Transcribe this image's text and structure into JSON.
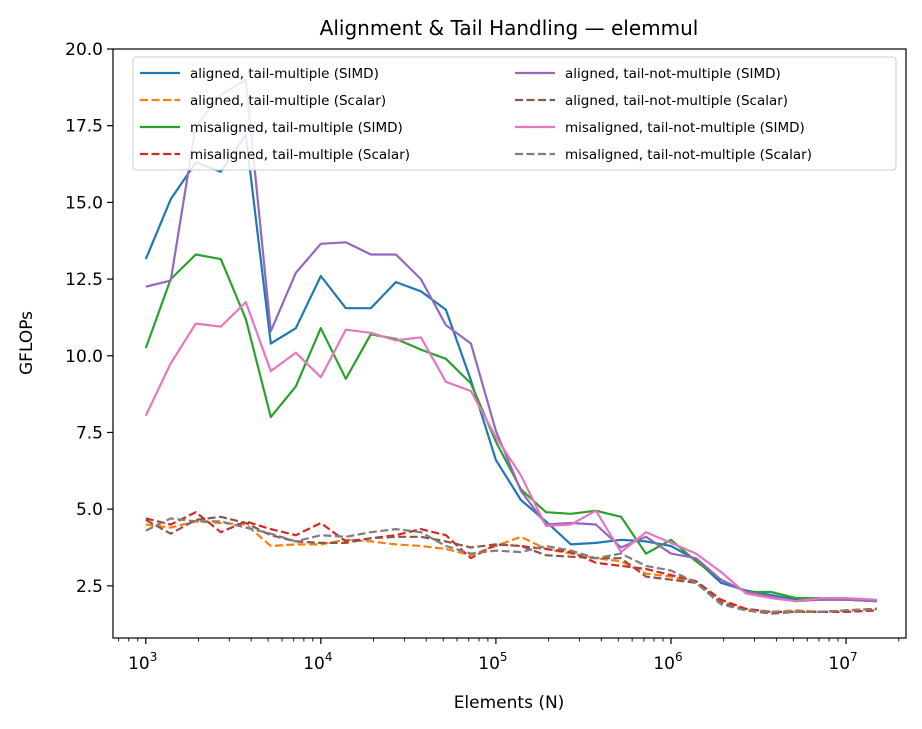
{
  "chart_data": {
    "type": "line",
    "title": "Alignment & Tail Handling — elemmul",
    "xlabel": "Elements (N)",
    "ylabel": "GFLOPs",
    "xscale": "log",
    "xlim": [
      650,
      22000000
    ],
    "ylim": [
      0.8,
      20.0
    ],
    "yticks": [
      2.5,
      5.0,
      7.5,
      10.0,
      12.5,
      15.0,
      17.5,
      20.0
    ],
    "ytick_labels": [
      "2.5",
      "5.0",
      "7.5",
      "10.0",
      "12.5",
      "15.0",
      "17.5",
      "20.0"
    ],
    "xticks": [
      {
        "value": 1000,
        "base": "10",
        "exp": "3"
      },
      {
        "value": 10000,
        "base": "10",
        "exp": "4"
      },
      {
        "value": 100000,
        "base": "10",
        "exp": "5"
      },
      {
        "value": 1000000,
        "base": "10",
        "exp": "6"
      },
      {
        "value": 10000000,
        "base": "10",
        "exp": "7"
      }
    ],
    "grid": false,
    "legend_placement": "top-left",
    "x": [
      1000,
      1389,
      1931,
      2683,
      3728,
      5179,
      7197,
      10000,
      13895,
      19307,
      26827,
      37276,
      51795,
      71969,
      100000,
      138950,
      193070,
      268270,
      372760,
      517950,
      719690,
      1000000,
      1389500,
      1930700,
      2682700,
      3727600,
      5179500,
      7196900,
      10000000,
      15000000
    ],
    "series": [
      {
        "name": "aligned, tail-multiple (SIMD)",
        "color": "#1f77b4",
        "dash": "solid",
        "values": [
          13.15,
          15.1,
          16.3,
          16.0,
          17.2,
          10.4,
          10.9,
          12.6,
          11.55,
          11.55,
          12.4,
          12.1,
          11.5,
          9.2,
          6.6,
          5.3,
          4.6,
          3.85,
          3.9,
          4.0,
          3.95,
          3.8,
          3.35,
          2.6,
          2.35,
          2.2,
          2.05,
          2.05,
          2.05,
          2.0
        ]
      },
      {
        "name": "aligned, tail-multiple (Scalar)",
        "color": "#ff7f0e",
        "dash": "dashed",
        "values": [
          4.5,
          4.4,
          4.6,
          4.55,
          4.5,
          3.8,
          3.85,
          3.85,
          4.0,
          3.95,
          3.85,
          3.8,
          3.7,
          3.5,
          3.8,
          4.1,
          3.7,
          3.55,
          3.4,
          3.3,
          2.9,
          2.8,
          2.6,
          2.0,
          1.75,
          1.65,
          1.7,
          1.65,
          1.7,
          1.75
        ]
      },
      {
        "name": "misaligned, tail-multiple (SIMD)",
        "color": "#2ca02c",
        "dash": "solid",
        "values": [
          10.25,
          12.5,
          13.3,
          13.15,
          11.2,
          8.0,
          9.0,
          10.9,
          9.25,
          10.7,
          10.55,
          10.2,
          9.9,
          9.1,
          7.2,
          5.65,
          4.9,
          4.85,
          4.95,
          4.75,
          3.55,
          4.0,
          3.3,
          2.7,
          2.3,
          2.3,
          2.1,
          2.1,
          2.05,
          2.0
        ]
      },
      {
        "name": "misaligned, tail-multiple (Scalar)",
        "color": "#d62728",
        "dash": "dashed",
        "values": [
          4.7,
          4.5,
          4.9,
          4.25,
          4.6,
          4.35,
          4.15,
          4.55,
          3.95,
          4.05,
          4.15,
          4.35,
          4.15,
          3.4,
          3.85,
          3.8,
          3.7,
          3.6,
          3.25,
          3.15,
          3.05,
          2.85,
          2.65,
          2.05,
          1.75,
          1.65,
          1.65,
          1.65,
          1.65,
          1.7
        ]
      },
      {
        "name": "aligned, tail-not-multiple (SIMD)",
        "color": "#9467bd",
        "dash": "solid",
        "values": [
          12.25,
          12.45,
          17.5,
          18.5,
          19.0,
          10.8,
          12.7,
          13.65,
          13.7,
          13.3,
          13.3,
          12.5,
          11.0,
          10.4,
          7.55,
          5.6,
          4.5,
          4.55,
          4.5,
          3.75,
          4.1,
          3.55,
          3.4,
          2.7,
          2.3,
          2.15,
          2.0,
          2.05,
          2.05,
          2.0
        ]
      },
      {
        "name": "aligned, tail-not-multiple (Scalar)",
        "color": "#8c564b",
        "dash": "dashed",
        "values": [
          4.65,
          4.2,
          4.65,
          4.75,
          4.55,
          4.15,
          3.95,
          3.9,
          3.9,
          4.05,
          4.1,
          4.1,
          3.95,
          3.75,
          3.85,
          3.8,
          3.5,
          3.45,
          3.4,
          3.4,
          2.8,
          2.7,
          2.6,
          1.95,
          1.7,
          1.6,
          1.65,
          1.65,
          1.7,
          1.75
        ]
      },
      {
        "name": "misaligned, tail-not-multiple (SIMD)",
        "color": "#e377c2",
        "dash": "solid",
        "values": [
          8.05,
          9.75,
          11.05,
          10.95,
          11.75,
          9.5,
          10.1,
          9.3,
          10.85,
          10.75,
          10.5,
          10.6,
          9.15,
          8.85,
          7.35,
          6.1,
          4.45,
          4.5,
          4.95,
          3.6,
          4.25,
          3.9,
          3.55,
          2.95,
          2.25,
          2.1,
          2.0,
          2.1,
          2.1,
          2.05
        ]
      },
      {
        "name": "misaligned, tail-not-multiple (Scalar)",
        "color": "#7f7f7f",
        "dash": "dashed",
        "values": [
          4.3,
          4.7,
          4.6,
          4.6,
          4.4,
          4.2,
          3.95,
          4.15,
          4.1,
          4.25,
          4.35,
          4.25,
          3.8,
          3.55,
          3.65,
          3.6,
          3.8,
          3.65,
          3.4,
          3.55,
          3.15,
          3.0,
          2.6,
          1.9,
          1.7,
          1.65,
          1.65,
          1.65,
          1.7,
          1.75
        ]
      }
    ]
  }
}
